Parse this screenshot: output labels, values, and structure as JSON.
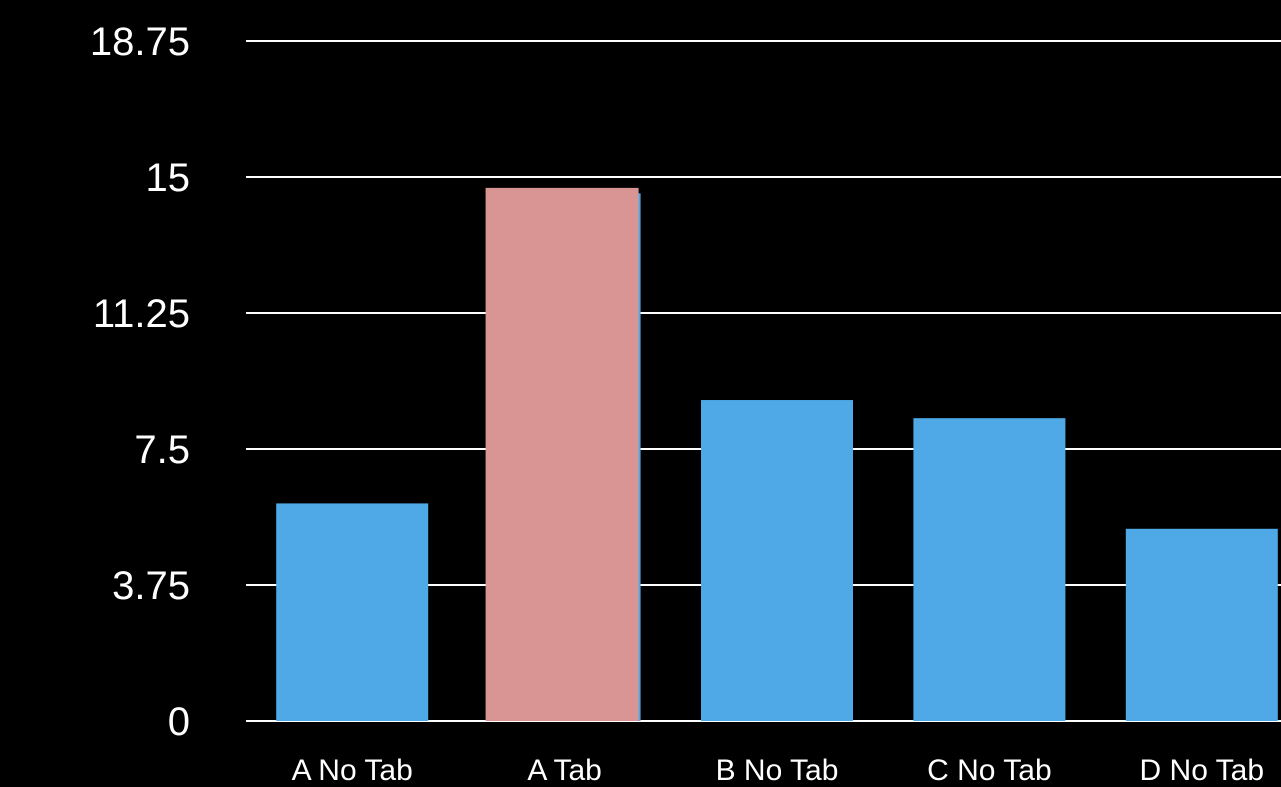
{
  "chart_data": {
    "type": "bar",
    "categories": [
      "A No Tab",
      "A Tab",
      "B No Tab",
      "C No Tab",
      "D No Tab"
    ],
    "values": [
      6.0,
      14.55,
      8.85,
      8.35,
      5.3
    ],
    "highlight_values": [
      null,
      14.7,
      null,
      null,
      null
    ],
    "ylim": [
      0,
      18.75
    ],
    "yticks": [
      "0",
      "3.75",
      "7.5",
      "11.25",
      "15",
      "18.75"
    ],
    "ytick_values": [
      0,
      3.75,
      7.5,
      11.25,
      15,
      18.75
    ],
    "grid": true,
    "colors": {
      "bar": "#4EA9E6",
      "highlight": "#D99594",
      "grid": "#FFFFFF",
      "background": "#000000",
      "text": "#FFFFFF"
    }
  }
}
